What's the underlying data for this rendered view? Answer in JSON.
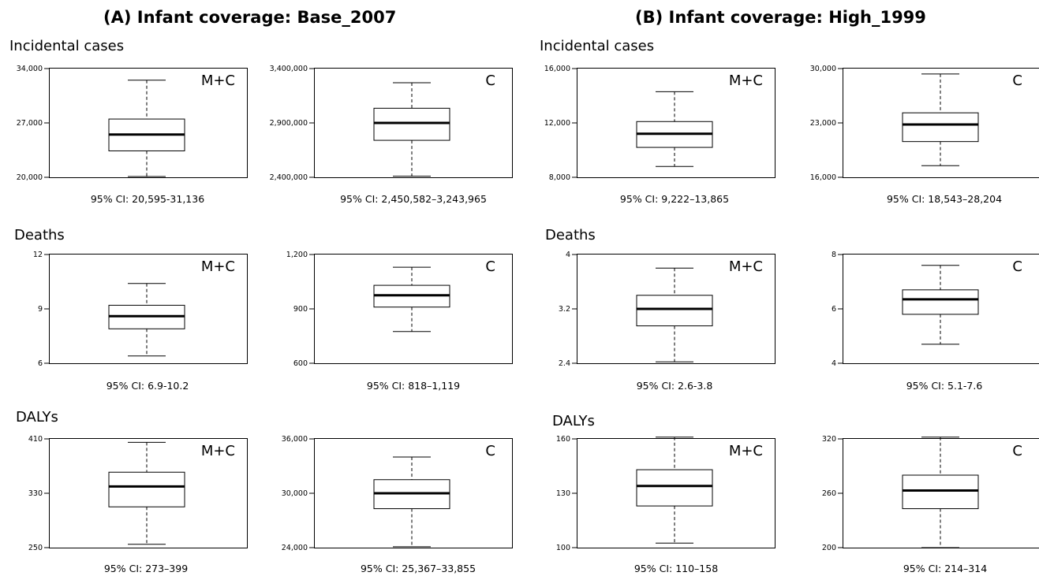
{
  "panels": [
    {
      "title": "(A) Infant coverage: Base_2007",
      "rows": [
        {
          "label": "Incidental cases",
          "charts": [
            {
              "tag": "M+C",
              "ci": "95% CI: 20,595-31,136"
            },
            {
              "tag": "C",
              "ci": "95% CI: 2,450,582–3,243,965"
            }
          ]
        },
        {
          "label": "Deaths",
          "charts": [
            {
              "tag": "M+C",
              "ci": "95% CI: 6.9-10.2"
            },
            {
              "tag": "C",
              "ci": "95% CI: 818–1,119"
            }
          ]
        },
        {
          "label": "DALYs",
          "charts": [
            {
              "tag": "M+C",
              "ci": "95% CI: 273–399"
            },
            {
              "tag": "C",
              "ci": "95% CI: 25,367–33,855"
            }
          ]
        }
      ]
    },
    {
      "title": "(B) Infant coverage: High_1999",
      "rows": [
        {
          "label": "Incidental cases",
          "charts": [
            {
              "tag": "M+C",
              "ci": "95% CI: 9,222–13,865"
            },
            {
              "tag": "C",
              "ci": "95% CI: 18,543–28,204"
            }
          ]
        },
        {
          "label": "Deaths",
          "charts": [
            {
              "tag": "M+C",
              "ci": "95% CI: 2.6-3.8"
            },
            {
              "tag": "C",
              "ci": "95% CI: 5.1-7.6"
            }
          ]
        },
        {
          "label": "DALYs",
          "charts": [
            {
              "tag": "M+C",
              "ci": "95% CI: 110–158"
            },
            {
              "tag": "C",
              "ci": "95% CI: 214–314"
            }
          ]
        }
      ]
    }
  ],
  "chart_data": [
    {
      "type": "box",
      "panel": "(A) Infant coverage: Base_2007",
      "outcome": "Incidental cases",
      "tag": "M+C",
      "ylim": [
        20000,
        34000
      ],
      "ticks": [
        "20,000",
        "27,000",
        "34,000"
      ],
      "tick_values": [
        20000,
        27000,
        34000
      ],
      "box": {
        "whisker_low": 20100,
        "q1": 23400,
        "median": 25500,
        "q3": 27500,
        "whisker_high": 32500
      }
    },
    {
      "type": "box",
      "panel": "(A) Infant coverage: Base_2007",
      "outcome": "Incidental cases",
      "tag": "C",
      "ylim": [
        2400000,
        3400000
      ],
      "ticks": [
        "2,400,000",
        "2,900,000",
        "3,400,000"
      ],
      "tick_values": [
        2400000,
        2900000,
        3400000
      ],
      "box": {
        "whisker_low": 2410000,
        "q1": 2740000,
        "median": 2900000,
        "q3": 3035000,
        "whisker_high": 3270000
      }
    },
    {
      "type": "box",
      "panel": "(A) Infant coverage: Base_2007",
      "outcome": "Deaths",
      "tag": "M+C",
      "ylim": [
        6,
        12
      ],
      "ticks": [
        "6",
        "9",
        "12"
      ],
      "tick_values": [
        6,
        9,
        12
      ],
      "box": {
        "whisker_low": 6.4,
        "q1": 7.9,
        "median": 8.6,
        "q3": 9.2,
        "whisker_high": 10.4
      }
    },
    {
      "type": "box",
      "panel": "(A) Infant coverage: Base_2007",
      "outcome": "Deaths",
      "tag": "C",
      "ylim": [
        600,
        1200
      ],
      "ticks": [
        "600",
        "900",
        "1,200"
      ],
      "tick_values": [
        600,
        900,
        1200
      ],
      "box": {
        "whisker_low": 775,
        "q1": 910,
        "median": 975,
        "q3": 1030,
        "whisker_high": 1130
      }
    },
    {
      "type": "box",
      "panel": "(A) Infant coverage: Base_2007",
      "outcome": "DALYs",
      "tag": "M+C",
      "ylim": [
        250,
        410
      ],
      "ticks": [
        "250",
        "330",
        "410"
      ],
      "tick_values": [
        250,
        330,
        410
      ],
      "box": {
        "whisker_low": 255,
        "q1": 310,
        "median": 340,
        "q3": 361,
        "whisker_high": 405
      }
    },
    {
      "type": "box",
      "panel": "(A) Infant coverage: Base_2007",
      "outcome": "DALYs",
      "tag": "C",
      "ylim": [
        24000,
        36000
      ],
      "ticks": [
        "24,000",
        "30,000",
        "36,000"
      ],
      "tick_values": [
        24000,
        30000,
        36000
      ],
      "box": {
        "whisker_low": 24100,
        "q1": 28300,
        "median": 30000,
        "q3": 31500,
        "whisker_high": 34000
      }
    },
    {
      "type": "box",
      "panel": "(B) Infant coverage: High_1999",
      "outcome": "Incidental cases",
      "tag": "M+C",
      "ylim": [
        8000,
        16000
      ],
      "ticks": [
        "8,000",
        "12,000",
        "16,000"
      ],
      "tick_values": [
        8000,
        12000,
        16000
      ],
      "box": {
        "whisker_low": 8800,
        "q1": 10200,
        "median": 11200,
        "q3": 12100,
        "whisker_high": 14300
      }
    },
    {
      "type": "box",
      "panel": "(B) Infant coverage: High_1999",
      "outcome": "Incidental cases",
      "tag": "C",
      "ylim": [
        16000,
        30000
      ],
      "ticks": [
        "16,000",
        "23,000",
        "30,000"
      ],
      "tick_values": [
        16000,
        23000,
        30000
      ],
      "box": {
        "whisker_low": 17500,
        "q1": 20600,
        "median": 22800,
        "q3": 24300,
        "whisker_high": 29300
      }
    },
    {
      "type": "box",
      "panel": "(B) Infant coverage: High_1999",
      "outcome": "Deaths",
      "tag": "M+C",
      "ylim": [
        2.4,
        4
      ],
      "ticks": [
        "2.4",
        "3.2",
        "4"
      ],
      "tick_values": [
        2.4,
        3.2,
        4
      ],
      "box": {
        "whisker_low": 2.42,
        "q1": 2.95,
        "median": 3.2,
        "q3": 3.4,
        "whisker_high": 3.8
      }
    },
    {
      "type": "box",
      "panel": "(B) Infant coverage: High_1999",
      "outcome": "Deaths",
      "tag": "C",
      "ylim": [
        4,
        8
      ],
      "ticks": [
        "4",
        "6",
        "8"
      ],
      "tick_values": [
        4,
        6,
        8
      ],
      "box": {
        "whisker_low": 4.7,
        "q1": 5.8,
        "median": 6.35,
        "q3": 6.7,
        "whisker_high": 7.6
      }
    },
    {
      "type": "box",
      "panel": "(B) Infant coverage: High_1999",
      "outcome": "DALYs",
      "tag": "M+C",
      "ylim": [
        100,
        160
      ],
      "ticks": [
        "100",
        "130",
        "160"
      ],
      "tick_values": [
        100,
        130,
        160
      ],
      "box": {
        "whisker_low": 102.5,
        "q1": 123,
        "median": 134,
        "q3": 143,
        "whisker_high": 161
      }
    },
    {
      "type": "box",
      "panel": "(B) Infant coverage: High_1999",
      "outcome": "DALYs",
      "tag": "C",
      "ylim": [
        200,
        320
      ],
      "ticks": [
        "200",
        "260",
        "320"
      ],
      "tick_values": [
        200,
        260,
        320
      ],
      "box": {
        "whisker_low": 200,
        "q1": 243,
        "median": 263,
        "q3": 280,
        "whisker_high": 322
      }
    }
  ]
}
